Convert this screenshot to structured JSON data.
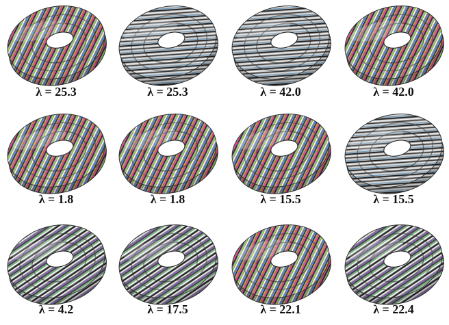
{
  "panels": [
    {
      "label": "λ = 25.3"
    },
    {
      "label": "λ = 25.3"
    },
    {
      "label": "λ = 42.0"
    },
    {
      "label": "λ = 42.0"
    },
    {
      "label": "λ = 1.8"
    },
    {
      "label": "λ = 1.8"
    },
    {
      "label": "λ = 15.5"
    },
    {
      "label": "λ = 15.5"
    },
    {
      "label": "λ = 4.2"
    },
    {
      "label": "λ = 17.5"
    },
    {
      "label": "λ = 22.1"
    },
    {
      "label": "λ = 22.4"
    }
  ]
}
